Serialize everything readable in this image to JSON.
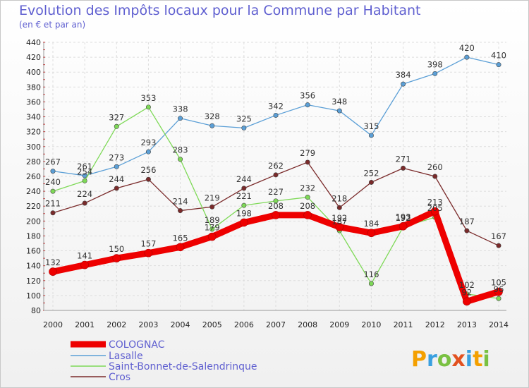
{
  "chart_data": {
    "type": "line",
    "title": "Evolution des Impôts locaux pour la Commune par Habitant",
    "subtitle": "(en € et par an)",
    "x": [
      2000,
      2001,
      2002,
      2003,
      2004,
      2005,
      2006,
      2007,
      2008,
      2009,
      2010,
      2011,
      2012,
      2013,
      2014
    ],
    "ylim": [
      80,
      440
    ],
    "yticks": [
      80,
      100,
      120,
      140,
      160,
      180,
      200,
      220,
      240,
      260,
      280,
      300,
      320,
      340,
      360,
      380,
      400,
      420,
      440
    ],
    "grid": true,
    "legend_position": "bottom-left",
    "series": [
      {
        "name": "COLOGNAC",
        "color": "#ee0000",
        "values": [
          132,
          141,
          150,
          157,
          165,
          179,
          198,
          208,
          208,
          192,
          184,
          193,
          213,
          92,
          105
        ]
      },
      {
        "name": "Lasalle",
        "color": "#5b9fd6",
        "values": [
          267,
          261,
          273,
          293,
          338,
          328,
          325,
          342,
          356,
          348,
          315,
          384,
          398,
          420,
          410
        ]
      },
      {
        "name": "Saint-Bonnet-de-Salendrinque",
        "color": "#7ed957",
        "values": [
          240,
          254,
          327,
          353,
          283,
          189,
          221,
          227,
          232,
          187,
          116,
          192,
          205,
          102,
          96
        ]
      },
      {
        "name": "Cros",
        "color": "#7a2a2a",
        "values": [
          211,
          224,
          244,
          256,
          214,
          219,
          244,
          262,
          279,
          218,
          252,
          271,
          260,
          187,
          167
        ]
      }
    ]
  },
  "logo": {
    "text": "Proxiti"
  }
}
